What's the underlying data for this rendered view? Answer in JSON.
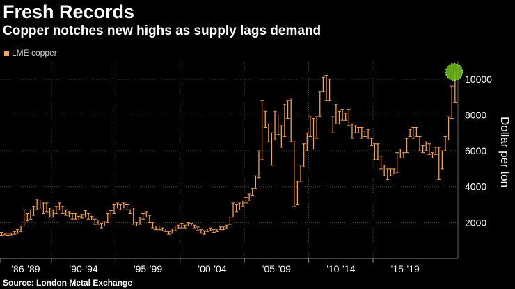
{
  "title": "Fresh Records",
  "subtitle": "Copper notches new highs as supply lags demand",
  "source": "Source: London Metal Exchange",
  "colors": {
    "series": "#f4a259",
    "highlight": "#6fbf1f",
    "grid": "#444444",
    "background": "#000000"
  },
  "chart_data": {
    "type": "bar",
    "subtype": "high-low range bars (quarterly)",
    "title": "Fresh Records",
    "legend": [
      "LME copper"
    ],
    "ylabel": "Dollar per ton",
    "xlabel": "",
    "ylim": [
      0,
      11000
    ],
    "yticks": [
      2000,
      4000,
      6000,
      8000,
      10000
    ],
    "ytick_labels": [
      "2000",
      "4000",
      "6000",
      "8000",
      "10000"
    ],
    "xlim": [
      1986,
      2021.6
    ],
    "x_groups": [
      {
        "label": "'86-'89",
        "start": 1986,
        "end": 1990
      },
      {
        "label": "'90-'94",
        "start": 1990,
        "end": 1995
      },
      {
        "label": "'95-'99",
        "start": 1995,
        "end": 2000
      },
      {
        "label": "'00-'04",
        "start": 2000,
        "end": 2005
      },
      {
        "label": "'05-'09",
        "start": 2005,
        "end": 2010
      },
      {
        "label": "'10-'14",
        "start": 2010,
        "end": 2015
      },
      {
        "label": "'15-'19",
        "start": 2015,
        "end": 2020
      }
    ],
    "annotation": {
      "type": "circle",
      "x": 2021.3,
      "y": 10400,
      "note": "record high"
    },
    "series": [
      {
        "name": "LME copper",
        "quarters": [
          [
            1986.0,
            1300,
            1450
          ],
          [
            1986.25,
            1320,
            1420
          ],
          [
            1986.5,
            1300,
            1400
          ],
          [
            1986.75,
            1320,
            1420
          ],
          [
            1987.0,
            1350,
            1500
          ],
          [
            1987.25,
            1400,
            1600
          ],
          [
            1987.5,
            1500,
            1800
          ],
          [
            1987.75,
            1800,
            2700
          ],
          [
            1988.0,
            2100,
            2500
          ],
          [
            1988.25,
            2200,
            2700
          ],
          [
            1988.5,
            2400,
            2900
          ],
          [
            1988.75,
            2700,
            3300
          ],
          [
            1989.0,
            2800,
            3200
          ],
          [
            1989.25,
            2500,
            3100
          ],
          [
            1989.5,
            2600,
            3100
          ],
          [
            1989.75,
            2300,
            2800
          ],
          [
            1990.0,
            2300,
            2700
          ],
          [
            1990.25,
            2500,
            2900
          ],
          [
            1990.5,
            2700,
            3100
          ],
          [
            1990.75,
            2500,
            2900
          ],
          [
            1991.0,
            2400,
            2700
          ],
          [
            1991.25,
            2300,
            2600
          ],
          [
            1991.5,
            2200,
            2500
          ],
          [
            1991.75,
            2200,
            2500
          ],
          [
            1992.0,
            2150,
            2350
          ],
          [
            1992.25,
            2250,
            2450
          ],
          [
            1992.5,
            2300,
            2650
          ],
          [
            1992.75,
            2200,
            2500
          ],
          [
            1993.0,
            2150,
            2350
          ],
          [
            1993.25,
            1900,
            2200
          ],
          [
            1993.5,
            1900,
            2150
          ],
          [
            1993.75,
            1700,
            1950
          ],
          [
            1994.0,
            1800,
            2050
          ],
          [
            1994.25,
            2000,
            2500
          ],
          [
            1994.5,
            2300,
            2650
          ],
          [
            1994.75,
            2500,
            3000
          ],
          [
            1995.0,
            2800,
            3100
          ],
          [
            1995.25,
            2700,
            3000
          ],
          [
            1995.5,
            2800,
            3100
          ],
          [
            1995.75,
            2700,
            3000
          ],
          [
            1996.0,
            2500,
            2700
          ],
          [
            1996.25,
            1900,
            2800
          ],
          [
            1996.5,
            1800,
            2000
          ],
          [
            1996.75,
            1900,
            2300
          ],
          [
            1997.0,
            2200,
            2500
          ],
          [
            1997.25,
            2300,
            2600
          ],
          [
            1997.5,
            2000,
            2400
          ],
          [
            1997.75,
            1700,
            2000
          ],
          [
            1998.0,
            1600,
            1800
          ],
          [
            1998.25,
            1600,
            1800
          ],
          [
            1998.5,
            1550,
            1700
          ],
          [
            1998.75,
            1500,
            1650
          ],
          [
            1999.0,
            1350,
            1500
          ],
          [
            1999.25,
            1400,
            1650
          ],
          [
            1999.5,
            1550,
            1800
          ],
          [
            1999.75,
            1700,
            1850
          ],
          [
            2000.0,
            1700,
            1950
          ],
          [
            2000.25,
            1700,
            1850
          ],
          [
            2000.5,
            1800,
            2000
          ],
          [
            2000.75,
            1800,
            1950
          ],
          [
            2001.0,
            1700,
            1850
          ],
          [
            2001.25,
            1550,
            1750
          ],
          [
            2001.5,
            1400,
            1600
          ],
          [
            2001.75,
            1350,
            1550
          ],
          [
            2002.0,
            1500,
            1650
          ],
          [
            2002.25,
            1550,
            1700
          ],
          [
            2002.5,
            1450,
            1600
          ],
          [
            2002.75,
            1500,
            1650
          ],
          [
            2003.0,
            1600,
            1750
          ],
          [
            2003.25,
            1600,
            1750
          ],
          [
            2003.5,
            1700,
            1850
          ],
          [
            2003.75,
            1900,
            2300
          ],
          [
            2004.0,
            2300,
            3100
          ],
          [
            2004.25,
            2600,
            3000
          ],
          [
            2004.5,
            2700,
            3100
          ],
          [
            2004.75,
            2900,
            3200
          ],
          [
            2005.0,
            3100,
            3400
          ],
          [
            2005.25,
            3200,
            3600
          ],
          [
            2005.5,
            3500,
            3900
          ],
          [
            2005.75,
            3900,
            4600
          ],
          [
            2006.0,
            4500,
            6000
          ],
          [
            2006.25,
            5500,
            8800
          ],
          [
            2006.5,
            7300,
            8200
          ],
          [
            2006.75,
            6500,
            7500
          ],
          [
            2007.0,
            5200,
            7000
          ],
          [
            2007.25,
            6600,
            8200
          ],
          [
            2007.5,
            6900,
            8000
          ],
          [
            2007.75,
            6200,
            7400
          ],
          [
            2008.0,
            6800,
            8600
          ],
          [
            2008.25,
            7800,
            8800
          ],
          [
            2008.5,
            6500,
            8900
          ],
          [
            2008.75,
            2900,
            6500
          ],
          [
            2009.0,
            3000,
            4300
          ],
          [
            2009.25,
            4300,
            5200
          ],
          [
            2009.5,
            5100,
            6400
          ],
          [
            2009.75,
            6000,
            7000
          ],
          [
            2010.0,
            6800,
            7900
          ],
          [
            2010.25,
            6100,
            7800
          ],
          [
            2010.5,
            6700,
            7900
          ],
          [
            2010.75,
            7900,
            9300
          ],
          [
            2011.0,
            9300,
            10100
          ],
          [
            2011.25,
            8800,
            10200
          ],
          [
            2011.5,
            8800,
            10000
          ],
          [
            2011.75,
            7000,
            7900
          ],
          [
            2012.0,
            7500,
            8600
          ],
          [
            2012.25,
            7500,
            8200
          ],
          [
            2012.5,
            7700,
            8300
          ],
          [
            2012.75,
            7700,
            8100
          ],
          [
            2013.0,
            7400,
            8300
          ],
          [
            2013.25,
            6700,
            7500
          ],
          [
            2013.5,
            7000,
            7400
          ],
          [
            2013.75,
            7000,
            7300
          ],
          [
            2014.0,
            6700,
            7300
          ],
          [
            2014.25,
            6800,
            7100
          ],
          [
            2014.5,
            6700,
            7200
          ],
          [
            2014.75,
            6300,
            6700
          ],
          [
            2015.0,
            5500,
            6400
          ],
          [
            2015.25,
            5500,
            6400
          ],
          [
            2015.5,
            5000,
            5700
          ],
          [
            2015.75,
            4600,
            5200
          ],
          [
            2016.0,
            4400,
            5000
          ],
          [
            2016.25,
            4600,
            5000
          ],
          [
            2016.5,
            4700,
            5000
          ],
          [
            2016.75,
            4800,
            5900
          ],
          [
            2017.0,
            5600,
            6100
          ],
          [
            2017.25,
            5600,
            5900
          ],
          [
            2017.5,
            5900,
            6700
          ],
          [
            2017.75,
            6800,
            7200
          ],
          [
            2018.0,
            6700,
            7300
          ],
          [
            2018.25,
            6800,
            7300
          ],
          [
            2018.5,
            6000,
            6800
          ],
          [
            2018.75,
            5900,
            6300
          ],
          [
            2019.0,
            6000,
            6500
          ],
          [
            2019.25,
            5800,
            6400
          ],
          [
            2019.5,
            5600,
            5900
          ],
          [
            2019.75,
            5800,
            6200
          ],
          [
            2020.0,
            4400,
            6200
          ],
          [
            2020.25,
            5000,
            6000
          ],
          [
            2020.5,
            6000,
            6800
          ],
          [
            2020.75,
            6600,
            7900
          ],
          [
            2021.0,
            7800,
            9600
          ],
          [
            2021.25,
            8700,
            10400
          ]
        ]
      }
    ]
  }
}
